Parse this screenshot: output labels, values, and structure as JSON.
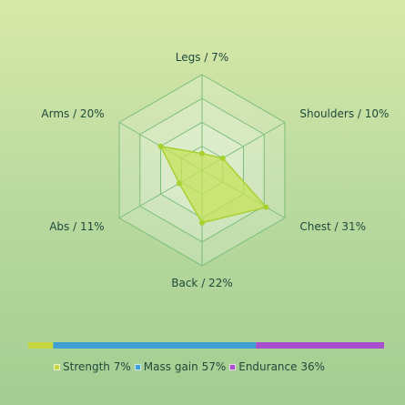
{
  "chart_data": {
    "type": "radar",
    "axes": [
      {
        "name": "Legs",
        "percent": "7%",
        "value": 7
      },
      {
        "name": "Shoulders",
        "percent": "10%",
        "value": 10
      },
      {
        "name": "Chest",
        "percent": "31%",
        "value": 31
      },
      {
        "name": "Back",
        "percent": "22%",
        "value": 22
      },
      {
        "name": "Abs",
        "percent": "11%",
        "value": 11
      },
      {
        "name": "Arms",
        "percent": "20%",
        "value": 20
      }
    ],
    "range": [
      0,
      40
    ],
    "rings": 4,
    "colors": {
      "fill": "#c6e25a",
      "stroke": "#a8d130",
      "grid": "#7cbd7a"
    },
    "distribution": [
      {
        "name": "Strength",
        "percent": "7%",
        "value": 7,
        "color": "#c8d640"
      },
      {
        "name": "Mass gain",
        "percent": "57%",
        "value": 57,
        "color": "#3d9fd2"
      },
      {
        "name": "Endurance",
        "percent": "36%",
        "value": 36,
        "color": "#a84fd0"
      }
    ]
  }
}
